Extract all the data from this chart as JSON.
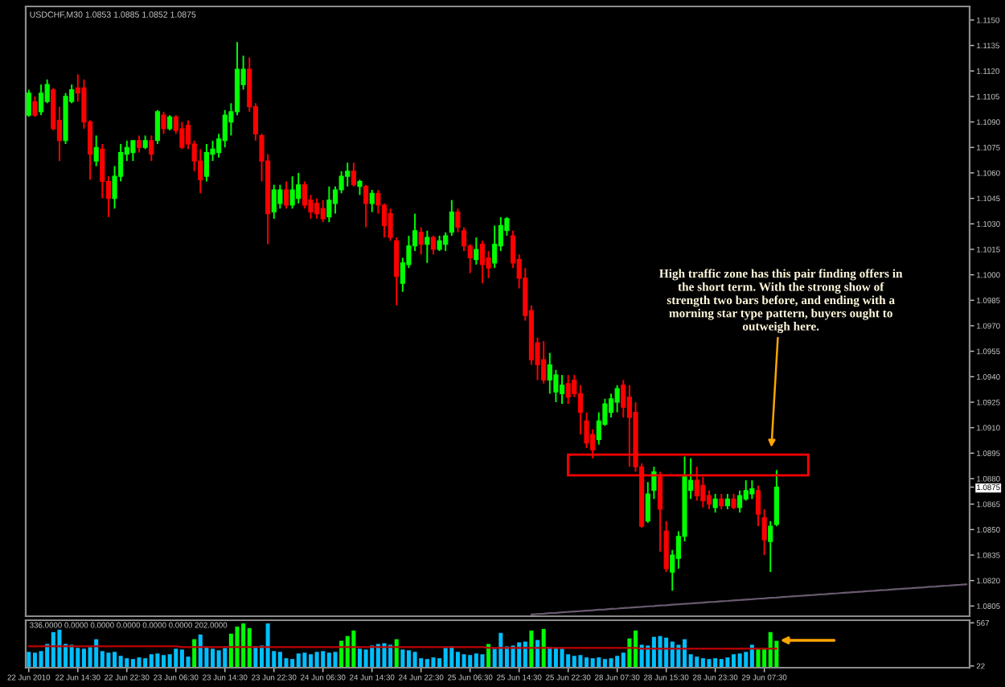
{
  "chart_data": [
    {
      "type": "candlestick",
      "title": "USDCHF,M30 1.0853 1.0885 1.0852 1.0875",
      "categories": [
        null,
        null,
        null,
        null,
        null,
        null,
        null,
        null,
        null,
        null,
        null,
        null,
        null,
        null,
        null,
        null,
        null,
        null,
        null,
        null,
        null,
        null,
        null,
        null,
        null,
        null,
        null,
        null,
        null,
        null,
        null,
        null,
        null,
        null,
        null,
        null,
        null,
        null,
        null,
        null,
        null,
        null,
        null,
        null,
        null,
        null,
        null,
        null,
        null,
        null,
        null,
        null,
        null,
        null,
        null,
        null,
        null,
        null,
        null,
        null,
        null,
        null,
        null,
        null,
        null,
        null,
        null,
        null,
        null,
        null,
        null,
        null,
        null,
        null,
        null,
        null,
        null,
        null,
        null,
        null,
        null,
        null,
        null,
        null,
        null,
        null,
        null,
        null,
        null,
        null,
        null,
        null,
        null,
        null,
        null,
        null,
        null,
        null,
        null,
        null,
        null,
        null,
        null,
        null,
        null,
        null,
        null,
        null,
        null,
        null,
        null,
        null,
        null,
        null,
        null,
        null,
        null,
        null,
        null,
        null,
        null,
        null,
        null,
        null,
        null,
        null,
        null,
        null,
        null,
        null,
        null,
        null,
        null,
        null,
        null,
        null,
        null,
        null,
        null,
        null,
        null,
        null,
        null,
        null,
        null,
        null,
        null,
        null,
        null,
        null,
        null,
        null,
        null,
        null
      ],
      "ylim": [
        1.0799,
        1.1158
      ],
      "yticks": [
        {
          "value": 1.115,
          "label": "1.1150"
        },
        1.1135,
        {
          "value": 1.112,
          "label": "1.1120"
        },
        1.1105,
        {
          "value": 1.109,
          "label": "1.1090"
        },
        1.1075,
        {
          "value": 1.106,
          "label": "1.1060"
        },
        1.1045,
        {
          "value": 1.103,
          "label": "1.1030"
        },
        1.1015,
        {
          "value": 1.1,
          "label": "1.1000"
        },
        1.0985,
        {
          "value": 1.097,
          "label": "1.0970"
        },
        1.0955,
        {
          "value": 1.094,
          "label": "1.0940"
        },
        1.0925,
        {
          "value": 1.091,
          "label": "1.0910"
        },
        1.0895,
        {
          "value": 1.088,
          "label": "1.0880"
        },
        1.0875,
        1.0865,
        {
          "value": 1.085,
          "label": "1.0850"
        },
        1.0835,
        {
          "value": 1.082,
          "label": "1.0820"
        },
        1.0805
      ],
      "annotations": [
        "High traffic zone has this pair finding offers in\nthe short term. With the strong show of\nstrength two bars before, and ending with a\nmorning star type pattern, buyers ought to\noutweigh here."
      ],
      "series": [
        {
          "type": "candlestick",
          "ohlc": [
            [
              1.1094,
              1.1109,
              1.1093,
              1.1107
            ],
            [
              1.1102,
              1.1105,
              1.1093,
              1.1094
            ],
            [
              1.1096,
              1.1112,
              1.1094,
              1.1107
            ],
            [
              1.1102,
              1.1115,
              1.1101,
              1.1112
            ],
            [
              1.1109,
              1.111,
              1.1085,
              1.1086
            ],
            [
              1.1091,
              1.1099,
              1.1067,
              1.1079
            ],
            [
              1.1079,
              1.1107,
              1.1077,
              1.1105
            ],
            [
              1.1102,
              1.1112,
              1.1101,
              1.1109
            ],
            [
              1.111,
              1.1118,
              1.1102,
              1.1107
            ],
            [
              1.111,
              1.1115,
              1.1086,
              1.109
            ],
            [
              1.109,
              1.1091,
              1.1056,
              1.1071
            ],
            [
              1.1067,
              1.1082,
              1.1064,
              1.1075
            ],
            [
              1.1074,
              1.1077,
              1.1045,
              1.1055
            ],
            [
              1.1055,
              1.1058,
              1.1034,
              1.1045
            ],
            [
              1.1045,
              1.1064,
              1.1039,
              1.1058
            ],
            [
              1.1058,
              1.1077,
              1.1055,
              1.1072
            ],
            [
              1.1071,
              1.1079,
              1.1067,
              1.1075
            ],
            [
              1.1072,
              1.1079,
              1.1067,
              1.1079
            ],
            [
              1.1079,
              1.1082,
              1.1072,
              1.1075
            ],
            [
              1.1075,
              1.1082,
              1.1074,
              1.1079
            ],
            [
              1.1079,
              1.1082,
              1.1067,
              1.1071
            ],
            [
              1.1079,
              1.1097,
              1.1077,
              1.1096
            ],
            [
              1.1094,
              1.1096,
              1.1083,
              1.1086
            ],
            [
              1.1086,
              1.1094,
              1.1085,
              1.1093
            ],
            [
              1.1093,
              1.1094,
              1.1083,
              1.1085
            ],
            [
              1.1086,
              1.109,
              1.1074,
              1.1075
            ],
            [
              1.1088,
              1.1091,
              1.1074,
              1.1077
            ],
            [
              1.1077,
              1.1079,
              1.1061,
              1.1067
            ],
            [
              1.1067,
              1.1074,
              1.1048,
              1.1056
            ],
            [
              1.1058,
              1.1077,
              1.1055,
              1.1072
            ],
            [
              1.1071,
              1.1079,
              1.1067,
              1.1074
            ],
            [
              1.1072,
              1.1083,
              1.1069,
              1.108
            ],
            [
              1.1079,
              1.1097,
              1.1075,
              1.1094
            ],
            [
              1.109,
              1.1101,
              1.1082,
              1.1096
            ],
            [
              1.1096,
              1.1137,
              1.1094,
              1.1121
            ],
            [
              1.1112,
              1.1129,
              1.1109,
              1.1121
            ],
            [
              1.1121,
              1.1128,
              1.1096,
              1.1099
            ],
            [
              1.1099,
              1.1101,
              1.1079,
              1.1083
            ],
            [
              1.1082,
              1.1083,
              1.1055,
              1.1067
            ],
            [
              1.1067,
              1.1071,
              1.1018,
              1.1036
            ],
            [
              1.1037,
              1.1053,
              1.1033,
              1.105
            ],
            [
              1.1042,
              1.1053,
              1.1039,
              1.105
            ],
            [
              1.105,
              1.1055,
              1.1039,
              1.1041
            ],
            [
              1.1041,
              1.1058,
              1.1039,
              1.105
            ],
            [
              1.1045,
              1.106,
              1.1042,
              1.1053
            ],
            [
              1.1053,
              1.1055,
              1.1039,
              1.1041
            ],
            [
              1.1044,
              1.1047,
              1.1033,
              1.1037
            ],
            [
              1.1042,
              1.1045,
              1.1033,
              1.1036
            ],
            [
              1.1039,
              1.1044,
              1.1031,
              1.1033
            ],
            [
              1.1034,
              1.1052,
              1.1031,
              1.1044
            ],
            [
              1.1042,
              1.1052,
              1.1036,
              1.105
            ],
            [
              1.105,
              1.1061,
              1.1048,
              1.1058
            ],
            [
              1.1058,
              1.1066,
              1.1052,
              1.1061
            ],
            [
              1.1061,
              1.1066,
              1.1052,
              1.1053
            ],
            [
              1.1052,
              1.1056,
              1.1047,
              1.1055
            ],
            [
              1.1052,
              1.1053,
              1.1028,
              1.1042
            ],
            [
              1.1042,
              1.105,
              1.1037,
              1.1048
            ],
            [
              1.1048,
              1.105,
              1.1036,
              1.1041
            ],
            [
              1.1041,
              1.1042,
              1.1022,
              1.1029
            ],
            [
              1.1036,
              1.1039,
              1.102,
              1.1022
            ],
            [
              1.102,
              1.1022,
              1.0982,
              1.0999
            ],
            [
              1.0995,
              1.101,
              1.099,
              1.1007
            ],
            [
              1.1006,
              1.1023,
              1.1004,
              1.1017
            ],
            [
              1.1017,
              1.1036,
              1.1014,
              1.1026
            ],
            [
              1.1025,
              1.1028,
              1.1012,
              1.1018
            ],
            [
              1.1018,
              1.1026,
              1.1007,
              1.1022
            ],
            [
              1.1022,
              1.1023,
              1.1012,
              1.1015
            ],
            [
              1.1015,
              1.1023,
              1.1014,
              1.102
            ],
            [
              1.1018,
              1.1025,
              1.1014,
              1.1023
            ],
            [
              1.1025,
              1.1044,
              1.1023,
              1.1037
            ],
            [
              1.1037,
              1.1039,
              1.1025,
              1.1028
            ],
            [
              1.1026,
              1.1028,
              1.1014,
              1.1017
            ],
            [
              1.1017,
              1.1018,
              1.1001,
              1.101
            ],
            [
              1.1009,
              1.1022,
              1.1006,
              1.1015
            ],
            [
              1.1018,
              1.102,
              1.0995,
              1.1006
            ],
            [
              1.101,
              1.1014,
              1.0998,
              1.1004
            ],
            [
              1.1007,
              1.1029,
              1.1004,
              1.1018
            ],
            [
              1.1017,
              1.1034,
              1.1014,
              1.1029
            ],
            [
              1.1026,
              1.1034,
              1.1023,
              1.1033
            ],
            [
              1.1023,
              1.1026,
              1.1004,
              1.1007
            ],
            [
              1.1009,
              1.1012,
              1.0992,
              1.0998
            ],
            [
              1.0998,
              1.1004,
              1.0973,
              1.0976
            ],
            [
              1.0979,
              1.0982,
              1.0947,
              1.095
            ],
            [
              1.096,
              1.0963,
              1.0938,
              1.0947
            ],
            [
              1.095,
              1.0961,
              1.0936,
              1.0938
            ],
            [
              1.0938,
              1.0954,
              1.093,
              1.0947
            ],
            [
              1.0931,
              1.0944,
              1.0925,
              1.0941
            ],
            [
              1.093,
              1.0941,
              1.0924,
              1.0935
            ],
            [
              1.0936,
              1.0941,
              1.0924,
              1.0928
            ],
            [
              1.0938,
              1.0941,
              1.0928,
              1.093
            ],
            [
              1.093,
              1.0935,
              1.0906,
              1.0919
            ],
            [
              1.0914,
              1.0919,
              1.0898,
              1.0901
            ],
            [
              1.0906,
              1.0909,
              1.0892,
              1.0897
            ],
            [
              1.0903,
              1.0919,
              1.09,
              1.0914
            ],
            [
              1.0912,
              1.0927,
              1.0911,
              1.0924
            ],
            [
              1.0919,
              1.093,
              1.0916,
              1.0927
            ],
            [
              1.0925,
              1.0935,
              1.0919,
              1.0933
            ],
            [
              1.0935,
              1.0938,
              1.0916,
              1.0922
            ],
            [
              1.0928,
              1.0935,
              1.0887,
              1.0916
            ],
            [
              1.0919,
              1.0925,
              1.0884,
              1.0887
            ],
            [
              1.0887,
              1.0889,
              1.0851,
              1.0852
            ],
            [
              1.0855,
              1.0878,
              1.0854,
              1.0871
            ],
            [
              1.0873,
              1.0887,
              1.0868,
              1.0884
            ],
            [
              1.0881,
              1.0884,
              1.0837,
              1.0862
            ],
            [
              1.0849,
              1.0855,
              1.0825,
              1.0827
            ],
            [
              1.0825,
              1.0838,
              1.0814,
              1.0835
            ],
            [
              1.0833,
              1.0849,
              1.0827,
              1.0846
            ],
            [
              1.0846,
              1.0893,
              1.0843,
              1.0881
            ],
            [
              1.0873,
              1.0892,
              1.0868,
              1.0879
            ],
            [
              1.0879,
              1.0887,
              1.0867,
              1.087
            ],
            [
              1.0876,
              1.0881,
              1.0863,
              1.0867
            ],
            [
              1.087,
              1.0873,
              1.0862,
              1.0865
            ],
            [
              1.0863,
              1.0871,
              1.086,
              1.0868
            ],
            [
              1.0868,
              1.0871,
              1.0862,
              1.0864
            ],
            [
              1.0864,
              1.0871,
              1.0862,
              1.0868
            ],
            [
              1.0868,
              1.0871,
              1.0862,
              1.0863
            ],
            [
              1.0863,
              1.0873,
              1.086,
              1.087
            ],
            [
              1.0868,
              1.0879,
              1.0867,
              1.0873
            ],
            [
              1.0871,
              1.0879,
              1.0868,
              1.0874
            ],
            [
              1.0873,
              1.0876,
              1.0852,
              1.0859
            ],
            [
              1.0857,
              1.0862,
              1.0835,
              1.0844
            ],
            [
              1.0843,
              1.0855,
              1.0825,
              1.0852
            ],
            [
              1.0853,
              1.0885,
              1.0852,
              1.0875
            ],
            null,
            null,
            null,
            null,
            null,
            null,
            null,
            null,
            null,
            null,
            null,
            null,
            null,
            null,
            null,
            null,
            null,
            null,
            null,
            null,
            null,
            null,
            null,
            null,
            null,
            null,
            null,
            null,
            null,
            null,
            null
          ],
          "colors": [
            "#00ff00",
            "#ff0000",
            "#00ff00",
            "#00ff00",
            "#ff0000",
            "#ff0000",
            "#00ff00",
            "#00ff00",
            "#ff0000",
            "#ff0000",
            "#ff0000",
            "#00ff00",
            "#ff0000",
            "#ff0000",
            "#00ff00",
            "#00ff00",
            "#00ff00",
            "#00ff00",
            "#ff0000",
            "#00ff00",
            "#ff0000",
            "#00ff00",
            "#ff0000",
            "#00ff00",
            "#ff0000",
            "#ff0000",
            "#ff0000",
            "#ff0000",
            "#ff0000",
            "#00ff00",
            "#00ff00",
            "#00ff00",
            "#00ff00",
            "#00ff00",
            "#00ff00",
            "#00ff00",
            "#ff0000",
            "#ff0000",
            "#ff0000",
            "#ff0000",
            "#00ff00",
            "#00ff00",
            "#ff0000",
            "#00ff00",
            "#00ff00",
            "#ff0000",
            "#ff0000",
            "#ff0000",
            "#ff0000",
            "#00ff00",
            "#00ff00",
            "#00ff00",
            "#00ff00",
            "#ff0000",
            "#00ff00",
            "#ff0000",
            "#00ff00",
            "#ff0000",
            "#ff0000",
            "#ff0000",
            "#ff0000",
            "#00ff00",
            "#00ff00",
            "#00ff00",
            "#ff0000",
            "#00ff00",
            "#ff0000",
            "#00ff00",
            "#00ff00",
            "#00ff00",
            "#ff0000",
            "#ff0000",
            "#ff0000",
            "#00ff00",
            "#ff0000",
            "#ff0000",
            "#00ff00",
            "#00ff00",
            "#00ff00",
            "#ff0000",
            "#ff0000",
            "#ff0000",
            "#ff0000",
            "#ff0000",
            "#ff0000",
            "#00ff00",
            "#00ff00",
            "#00ff00",
            "#ff0000",
            "#ff0000",
            "#ff0000",
            "#ff0000",
            "#ff0000",
            "#00ff00",
            "#00ff00",
            "#00ff00",
            "#00ff00",
            "#ff0000",
            "#ff0000",
            "#ff0000",
            "#ff0000",
            "#00ff00",
            "#00ff00",
            "#ff0000",
            "#ff0000",
            "#00ff00",
            "#00ff00",
            "#00ff00",
            "#00ff00",
            "#ff0000",
            "#ff0000",
            "#ff0000",
            "#00ff00",
            "#ff0000",
            "#00ff00",
            "#ff0000",
            "#00ff00",
            "#00ff00",
            "#00ff00",
            "#ff0000",
            "#ff0000",
            "#00ff00",
            "#00ff00",
            null,
            null,
            null,
            null,
            null,
            null,
            null,
            null,
            null,
            null,
            null,
            null,
            null,
            null,
            null,
            null,
            null,
            null,
            null,
            null,
            null,
            null,
            null,
            null,
            null,
            null,
            null,
            null,
            null,
            null,
            null
          ]
        },
        {
          "type": "line",
          "color": "#6a5a6e",
          "values": [
            null,
            null,
            null,
            null,
            null,
            null,
            null,
            null,
            null,
            null,
            null,
            null,
            null,
            null,
            null,
            null,
            null,
            null,
            null,
            null,
            null,
            null,
            null,
            null,
            null,
            null,
            null,
            null,
            null,
            null,
            null,
            null,
            null,
            null,
            null,
            null,
            null,
            null,
            null,
            null,
            null,
            null,
            null,
            null,
            null,
            null,
            null,
            null,
            null,
            null,
            null,
            null,
            null,
            null,
            null,
            null,
            null,
            null,
            null,
            null,
            null,
            null,
            null,
            null,
            null,
            null,
            null,
            null,
            null,
            null,
            null,
            null,
            null,
            null,
            null,
            null,
            null,
            null,
            null,
            null,
            null,
            null,
            1.08,
            1.08003,
            1.08005,
            1.08008,
            1.0801,
            1.08013,
            1.08015,
            1.08018,
            1.0802,
            1.08023,
            1.08025,
            1.08028,
            1.0803,
            1.08033,
            1.08035,
            1.08038,
            1.0804,
            1.08043,
            1.08045,
            1.08048,
            1.0805,
            1.08053,
            1.08055,
            1.08058,
            1.0806,
            1.08063,
            1.08065,
            1.08068,
            1.0807,
            1.08073,
            1.08075,
            1.08078,
            1.0808,
            1.08083,
            1.08085,
            1.08088,
            1.0809,
            1.08093,
            1.08095,
            1.08098,
            1.081,
            1.08103,
            1.08105,
            1.08108,
            1.0811,
            1.08113,
            1.08115,
            1.08118,
            1.0812,
            1.08123,
            1.08125,
            1.08128,
            1.0813,
            1.08133,
            1.08135,
            1.08138,
            1.0814,
            1.08143,
            1.08145,
            1.08148,
            1.0815,
            1.08153,
            1.08155,
            1.08158,
            1.0816,
            1.08163,
            1.08165,
            1.08168,
            1.0817,
            1.08173,
            1.08175,
            1.08178
          ]
        }
      ]
    },
    {
      "type": "bar",
      "title": "336.0000 0.0000 0.0000 0.0000 0.0000 0.0000 202.0000",
      "categories": [
        "22 Jun 2010",
        null,
        null,
        null,
        null,
        null,
        null,
        null,
        "22 Jun 14:30",
        null,
        null,
        null,
        null,
        null,
        null,
        null,
        "22 Jun 22:30",
        null,
        null,
        null,
        null,
        null,
        null,
        null,
        "23 Jun 06:30",
        null,
        null,
        null,
        null,
        null,
        null,
        null,
        "23 Jun 14:30",
        null,
        null,
        null,
        null,
        null,
        null,
        null,
        "23 Jun 22:30",
        null,
        null,
        null,
        null,
        null,
        null,
        null,
        "24 Jun 06:30",
        null,
        null,
        null,
        null,
        null,
        null,
        null,
        "24 Jun 14:30",
        null,
        null,
        null,
        null,
        null,
        null,
        null,
        "24 Jun 22:30",
        null,
        null,
        null,
        null,
        null,
        null,
        null,
        "25 Jun 06:30",
        null,
        null,
        null,
        null,
        null,
        null,
        null,
        "25 Jun 14:30",
        null,
        null,
        null,
        null,
        null,
        null,
        null,
        "25 Jun 22:30",
        null,
        null,
        null,
        null,
        null,
        null,
        null,
        "28 Jun 07:30",
        null,
        null,
        null,
        null,
        null,
        null,
        null,
        "28 Jun 15:30",
        null,
        null,
        null,
        null,
        null,
        null,
        null,
        "28 Jun 23:30",
        null,
        null,
        null,
        null,
        null,
        null,
        null,
        "29 Jun 07:30",
        null,
        null,
        null,
        null,
        null,
        null,
        null,
        null,
        null,
        null,
        null,
        null,
        null,
        null,
        null,
        null,
        null,
        null,
        null,
        null,
        null,
        null,
        null,
        null,
        null,
        null,
        null,
        null,
        null,
        null,
        null,
        null,
        null
      ],
      "ylim": [
        0,
        600
      ],
      "yticks": [
        22,
        567
      ],
      "series": [
        {
          "values": [
            200,
            190,
            210,
            300,
            450,
            480,
            300,
            290,
            250,
            240,
            260,
            360,
            210,
            190,
            200,
            150,
            120,
            110,
            130,
            120,
            170,
            180,
            160,
            170,
            240,
            230,
            140,
            360,
            420,
            260,
            240,
            220,
            250,
            430,
            520,
            560,
            500,
            270,
            280,
            560,
            210,
            200,
            120,
            110,
            180,
            190,
            170,
            200,
            210,
            190,
            200,
            340,
            400,
            470,
            240,
            230,
            280,
            300,
            310,
            290,
            360,
            230,
            220,
            200,
            120,
            110,
            130,
            120,
            250,
            270,
            200,
            170,
            160,
            180,
            170,
            300,
            240,
            440,
            270,
            280,
            320,
            330,
            470,
            350,
            490,
            260,
            250,
            240,
            170,
            150,
            160,
            130,
            120,
            130,
            110,
            120,
            150,
            190,
            370,
            470,
            290,
            280,
            390,
            400,
            380,
            330,
            290,
            360,
            170,
            140,
            120,
            110,
            120,
            110,
            130,
            170,
            180,
            200,
            290,
            240,
            240,
            450,
            340,
            null,
            null,
            null,
            null,
            null,
            null,
            null,
            null,
            null,
            null,
            null,
            null,
            null,
            null,
            null,
            null,
            null,
            null,
            null,
            null,
            null,
            null,
            null,
            null,
            null,
            null,
            null,
            null,
            null,
            null,
            null
          ],
          "colors": [
            "#00bfff",
            "#00bfff",
            "#00bfff",
            "#00bfff",
            "#00bfff",
            "#00bfff",
            "#00bfff",
            "#00bfff",
            "#00bfff",
            "#00bfff",
            "#00bfff",
            "#00bfff",
            "#00bfff",
            "#00bfff",
            "#00bfff",
            "#00bfff",
            "#00bfff",
            "#00bfff",
            "#00bfff",
            "#00bfff",
            "#00bfff",
            "#00bfff",
            "#00bfff",
            "#00bfff",
            "#00bfff",
            "#00bfff",
            "#00bfff",
            "#00ff00",
            "#00bfff",
            "#00bfff",
            "#00bfff",
            "#00bfff",
            "#00bfff",
            "#00ff00",
            "#00ff00",
            "#00ff00",
            "#00ff00",
            "#00bfff",
            "#00bfff",
            "#00bfff",
            "#00bfff",
            "#00bfff",
            "#00bfff",
            "#00bfff",
            "#00bfff",
            "#00bfff",
            "#00bfff",
            "#00bfff",
            "#00bfff",
            "#00bfff",
            "#00bfff",
            "#00ff00",
            "#00ff00",
            "#00ff00",
            "#00bfff",
            "#00bfff",
            "#00bfff",
            "#00bfff",
            "#00bfff",
            "#00bfff",
            "#00ff00",
            "#00bfff",
            "#00bfff",
            "#00bfff",
            "#00bfff",
            "#00bfff",
            "#00bfff",
            "#00bfff",
            "#00bfff",
            "#00bfff",
            "#00bfff",
            "#00bfff",
            "#00bfff",
            "#00bfff",
            "#00bfff",
            "#00ff00",
            "#00bfff",
            "#00bfff",
            "#00bfff",
            "#00bfff",
            "#00bfff",
            "#00bfff",
            "#00ff00",
            "#00bfff",
            "#00ff00",
            "#00bfff",
            "#00bfff",
            "#00bfff",
            "#00bfff",
            "#00bfff",
            "#00bfff",
            "#00bfff",
            "#00bfff",
            "#00bfff",
            "#00bfff",
            "#00bfff",
            "#00bfff",
            "#00bfff",
            "#00ff00",
            "#00ff00",
            "#00bfff",
            "#00bfff",
            "#00bfff",
            "#00bfff",
            "#00bfff",
            "#00bfff",
            "#00bfff",
            "#00bfff",
            "#00bfff",
            "#00bfff",
            "#00bfff",
            "#00bfff",
            "#00bfff",
            "#00bfff",
            "#00bfff",
            "#00bfff",
            "#00bfff",
            "#00bfff",
            "#00bfff",
            "#00ff00",
            "#00ff00",
            "#00ff00",
            "#00ff00",
            null,
            null,
            null,
            null,
            null,
            null,
            null,
            null,
            null,
            null,
            null,
            null,
            null,
            null,
            null,
            null,
            null,
            null,
            null,
            null,
            null,
            null,
            null,
            null,
            null,
            null,
            null,
            null,
            null,
            null,
            null
          ]
        },
        {
          "type": "line",
          "color": "#c00000",
          "values": [
            270,
            270,
            270,
            270,
            270,
            270,
            270,
            270,
            270,
            270,
            270,
            270,
            270,
            270,
            270,
            270,
            270,
            270,
            270,
            270,
            270,
            270,
            270,
            270,
            270,
            260,
            260,
            260,
            260,
            260,
            260,
            260,
            260,
            260,
            260,
            260,
            260,
            260,
            260,
            260,
            260,
            260,
            260,
            260,
            260,
            260,
            260,
            260,
            260,
            260,
            260,
            260,
            260,
            260,
            260,
            260,
            260,
            260,
            260,
            260,
            260,
            260,
            260,
            260,
            260,
            260,
            260,
            260,
            260,
            260,
            260,
            260,
            260,
            260,
            260,
            250,
            250,
            250,
            250,
            250,
            250,
            250,
            250,
            250,
            250,
            250,
            250,
            250,
            250,
            250,
            250,
            250,
            250,
            250,
            250,
            250,
            250,
            250,
            250,
            250,
            240,
            240,
            240,
            240,
            240,
            240,
            240,
            240,
            240,
            240,
            240,
            240,
            240,
            240,
            240,
            240,
            240,
            240,
            240,
            240,
            240,
            240,
            240,
            null,
            null,
            null,
            null,
            null,
            null,
            null,
            null,
            null,
            null,
            null,
            null,
            null,
            null,
            null,
            null,
            null,
            null,
            null,
            null,
            null,
            null,
            null,
            null,
            null,
            null,
            null,
            null,
            null,
            null,
            null
          ]
        }
      ]
    }
  ]
}
